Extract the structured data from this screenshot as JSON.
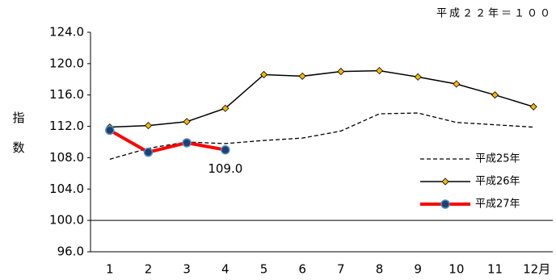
{
  "chart_data": {
    "type": "line",
    "note": "平成２２年＝１００",
    "y_label": "指数",
    "categories": [
      "1",
      "2",
      "3",
      "4",
      "5",
      "6",
      "7",
      "8",
      "9",
      "10",
      "11",
      "12月"
    ],
    "ylim": [
      96,
      124
    ],
    "yticks": [
      {
        "value": 96,
        "label": "96.0"
      },
      {
        "value": 100,
        "label": "100.0"
      },
      {
        "value": 104,
        "label": "104.0"
      },
      {
        "value": 108,
        "label": "108.0"
      },
      {
        "value": 112,
        "label": "112.0"
      },
      {
        "value": 116,
        "label": "116.0"
      },
      {
        "value": 120,
        "label": "120.0"
      },
      {
        "value": 124,
        "label": "124.0"
      }
    ],
    "reference_line": 100,
    "series": [
      {
        "name": "平成25年",
        "color": "#000000",
        "style": "dashed",
        "values": [
          107.8,
          109.2,
          110.0,
          109.8,
          110.2,
          110.5,
          111.4,
          113.6,
          113.7,
          112.5,
          112.2,
          111.9
        ]
      },
      {
        "name": "平成26年",
        "color": "#000000",
        "style": "diamond",
        "values": [
          111.9,
          112.1,
          112.6,
          114.3,
          118.6,
          118.4,
          119.0,
          119.1,
          118.3,
          117.4,
          116.0,
          114.5
        ]
      },
      {
        "name": "平成27年",
        "color": "#ff0000",
        "style": "circle",
        "values": [
          111.5,
          108.7,
          109.9,
          109.0,
          null,
          null,
          null,
          null,
          null,
          null,
          null,
          null
        ],
        "value_labels": [
          null,
          null,
          null,
          "109.0",
          null,
          null,
          null,
          null,
          null,
          null,
          null,
          null
        ]
      }
    ]
  }
}
